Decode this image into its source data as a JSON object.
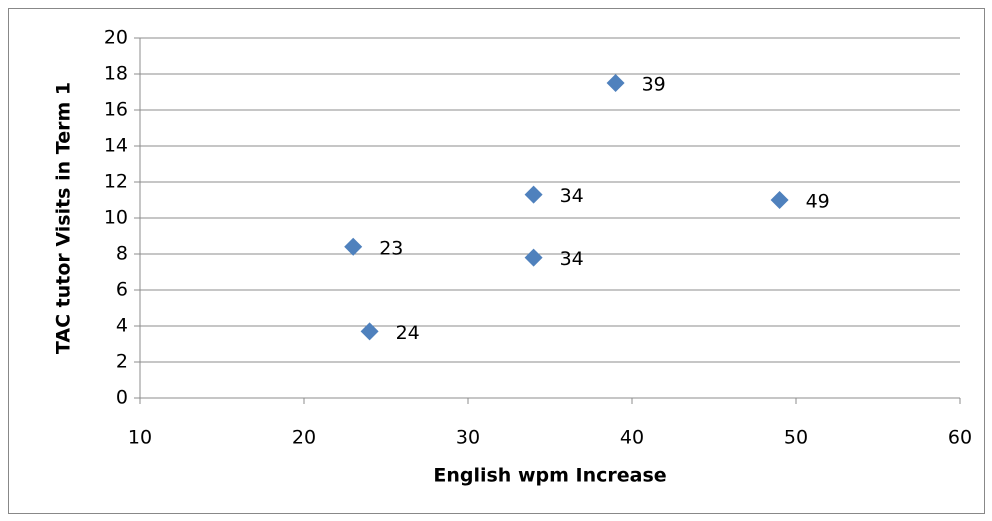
{
  "chart_data": {
    "type": "scatter",
    "x": [
      39,
      34,
      49,
      23,
      34,
      24
    ],
    "values": [
      17.5,
      11.3,
      11,
      8.4,
      7.8,
      3.7
    ],
    "color": "#4f81bd",
    "xlabel": "English wpm Increase",
    "ylabel": "TAC tutor Visits in Term 1",
    "xlim": [
      10,
      60
    ],
    "xticks": [
      10,
      20,
      30,
      40,
      50,
      60
    ],
    "ylim": [
      0,
      20
    ],
    "yticks": [
      0,
      2,
      4,
      6,
      8,
      10,
      12,
      14,
      16,
      18,
      20
    ],
    "grid": true
  }
}
